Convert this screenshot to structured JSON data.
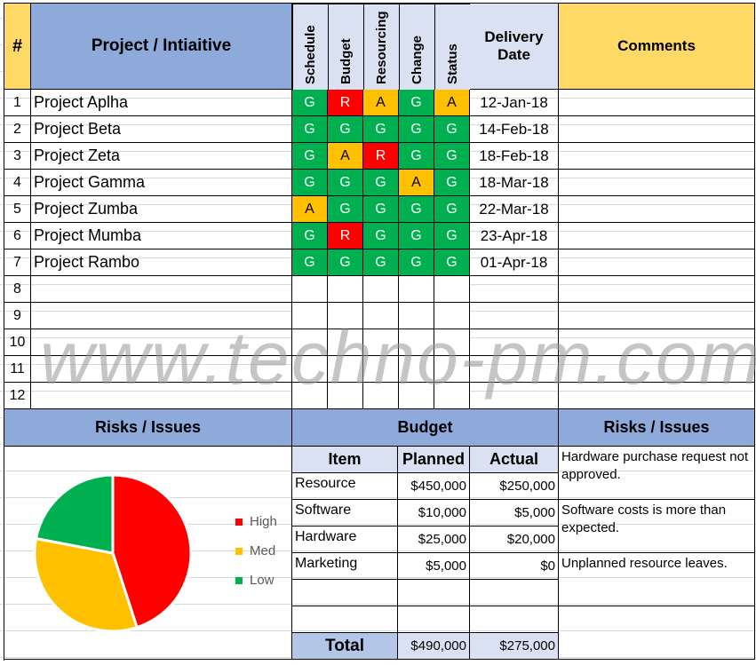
{
  "header": {
    "num": "#",
    "project": "Project / Intiaitive",
    "schedule": "Schedule",
    "budget": "Budget",
    "resourcing": "Resourcing",
    "change": "Change",
    "status": "Status",
    "delivery": "Delivery Date",
    "comments": "Comments"
  },
  "colors": {
    "G": "#00b050",
    "R": "#ff0000",
    "A": "#ffc000",
    "header_blue": "#8eaadb",
    "header_light": "#d9e1f2",
    "header_yellow": "#ffd966"
  },
  "projects": [
    {
      "num": "1",
      "name": "Project Aplha",
      "ratings": [
        "G",
        "R",
        "A",
        "G",
        "A"
      ],
      "date": "12-Jan-18"
    },
    {
      "num": "2",
      "name": "Project Beta",
      "ratings": [
        "G",
        "G",
        "G",
        "G",
        "G"
      ],
      "date": "14-Feb-18"
    },
    {
      "num": "3",
      "name": "Project Zeta",
      "ratings": [
        "G",
        "A",
        "R",
        "G",
        "G"
      ],
      "date": "18-Feb-18"
    },
    {
      "num": "4",
      "name": "Project Gamma",
      "ratings": [
        "G",
        "G",
        "G",
        "A",
        "G"
      ],
      "date": "18-Mar-18"
    },
    {
      "num": "5",
      "name": "Project Zumba",
      "ratings": [
        "A",
        "G",
        "G",
        "G",
        "G"
      ],
      "date": "22-Mar-18"
    },
    {
      "num": "6",
      "name": "Project Mumba",
      "ratings": [
        "G",
        "R",
        "G",
        "G",
        "G"
      ],
      "date": "23-Apr-18"
    },
    {
      "num": "7",
      "name": "Project Rambo",
      "ratings": [
        "G",
        "G",
        "G",
        "G",
        "G"
      ],
      "date": "01-Apr-18"
    },
    {
      "num": "8"
    },
    {
      "num": "9"
    },
    {
      "num": "10"
    },
    {
      "num": "11"
    },
    {
      "num": "12"
    }
  ],
  "watermark": "www.techno-pm.com",
  "risks_title": "Risks / Issues",
  "chart_data": {
    "type": "pie",
    "categories": [
      "High",
      "Med",
      "Low"
    ],
    "values": [
      45,
      33,
      22
    ],
    "colors": [
      "#ff0000",
      "#ffc000",
      "#00b050"
    ],
    "legend": "right"
  },
  "budget": {
    "title": "Budget",
    "headers": [
      "Item",
      "Planned",
      "Actual"
    ],
    "rows": [
      [
        "Resource",
        "$450,000",
        "$250,000"
      ],
      [
        "Software",
        "$10,000",
        "$5,000"
      ],
      [
        "Hardware",
        "$25,000",
        "$20,000"
      ],
      [
        "Marketing",
        "$5,000",
        "$0"
      ],
      [
        "",
        "",
        ""
      ],
      [
        "",
        "",
        ""
      ]
    ],
    "total": {
      "label": "Total",
      "planned": "$490,000",
      "actual": "$275,000"
    }
  },
  "issues": {
    "title": "Risks / Issues",
    "items": [
      "Hardware purchase request not approved.",
      "Software costs is more than expected.",
      "Unplanned resource leaves.",
      ""
    ]
  }
}
